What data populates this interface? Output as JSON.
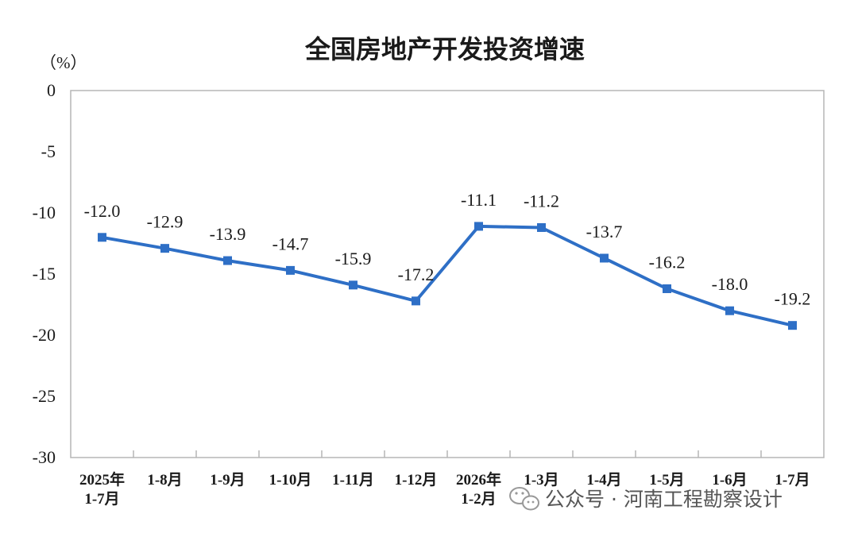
{
  "chart_data": {
    "type": "line",
    "title": "全国房地产开发投资增速",
    "unit_label": "（%）",
    "ylim": [
      -30,
      0
    ],
    "yticks": [
      0,
      -5,
      -10,
      -15,
      -20,
      -25,
      -30
    ],
    "grid": false,
    "categories": [
      [
        "2025年",
        "1-7月"
      ],
      [
        "1-8月"
      ],
      [
        "1-9月"
      ],
      [
        "1-10月"
      ],
      [
        "1-11月"
      ],
      [
        "1-12月"
      ],
      [
        "2026年",
        "1-2月"
      ],
      [
        "1-3月"
      ],
      [
        "1-4月"
      ],
      [
        "1-5月"
      ],
      [
        "1-6月"
      ],
      [
        "1-7月"
      ]
    ],
    "series": [
      {
        "values": [
          -12.0,
          -12.9,
          -13.9,
          -14.7,
          -15.9,
          -17.2,
          -11.1,
          -11.2,
          -13.7,
          -16.2,
          -18.0,
          -19.2
        ],
        "labels": [
          "-12.0",
          "-12.9",
          "-13.9",
          "-14.7",
          "-15.9",
          "-17.2",
          "-11.1",
          "-11.2",
          "-13.7",
          "-16.2",
          "-18.0",
          "-19.2"
        ],
        "color": "#2e6fc6"
      }
    ]
  },
  "watermark": {
    "text": "公众号 · 河南工程勘察设计",
    "icon": "wechat-icon"
  }
}
